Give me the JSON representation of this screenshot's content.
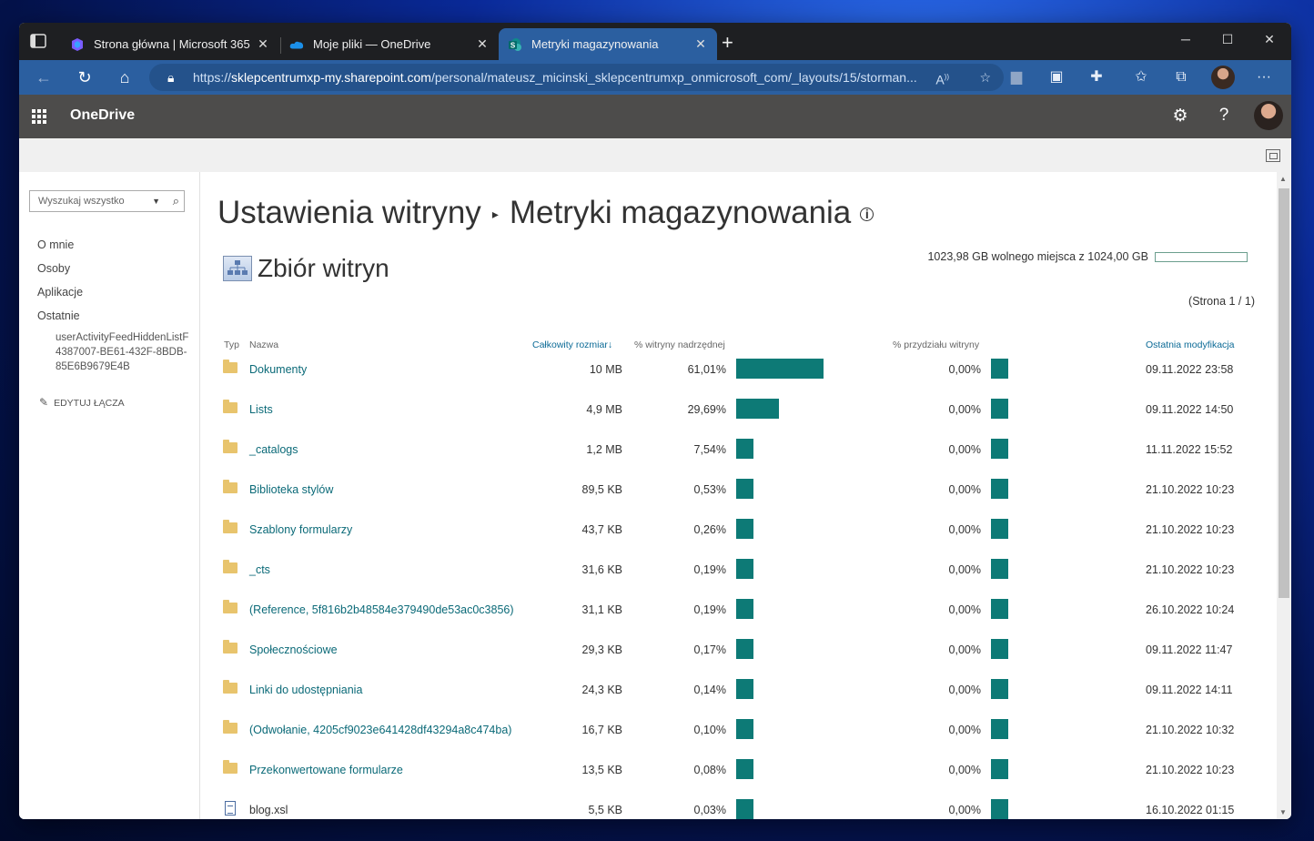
{
  "browser": {
    "tabs": [
      {
        "label": "Strona główna | Microsoft 365",
        "icon": "microsoft365-icon"
      },
      {
        "label": "Moje pliki — OneDrive",
        "icon": "onedrive-icon"
      },
      {
        "label": "Metryki magazynowania",
        "icon": "sharepoint-icon"
      }
    ],
    "new_tab": "+",
    "url_prefix": "https://",
    "url_host": "sklepcentrumxp-my.sharepoint.com",
    "url_path": "/personal/mateusz_micinski_sklepcentrumxp_onmicrosoft_com/_layouts/15/storman..."
  },
  "suite": {
    "brand": "OneDrive"
  },
  "leftnav": {
    "search_placeholder": "Wyszukaj wszystko",
    "items": [
      "O mnie",
      "Osoby",
      "Aplikacje",
      "Ostatnie"
    ],
    "recent_sub": "userActivityFeedHiddenListF4387007-BE61-432F-8BDB-85E6B9679E4B",
    "edit_links": "EDYTUJ ŁĄCZA"
  },
  "page": {
    "title_part1": "Ustawienia witryny",
    "title_part2": "Metryki magazynowania",
    "section_title": "Zbiór witryn",
    "quota_text": "1023,98 GB wolnego miejsca z 1024,00 GB",
    "quota_used_fraction": 0.0001,
    "pager": "(Strona 1 / 1)"
  },
  "table": {
    "headers": {
      "type": "Typ",
      "name": "Nazwa",
      "size": "Całkowity rozmiar",
      "parent_pct": "% witryny nadrzędnej",
      "quota_pct": "% przydziału witryny",
      "modified": "Ostatnia modyfikacja"
    },
    "rows": [
      {
        "type": "folder",
        "name": "Dokumenty",
        "size": "10 MB",
        "parent": "61,01%",
        "parent_val": 61.01,
        "quota": "0,00%",
        "modified": "09.11.2022 23:58"
      },
      {
        "type": "folder",
        "name": "Lists",
        "size": "4,9 MB",
        "parent": "29,69%",
        "parent_val": 29.69,
        "quota": "0,00%",
        "modified": "09.11.2022 14:50"
      },
      {
        "type": "folder",
        "name": "_catalogs",
        "size": "1,2 MB",
        "parent": "7,54%",
        "parent_val": 7.54,
        "quota": "0,00%",
        "modified": "11.11.2022 15:52"
      },
      {
        "type": "folder",
        "name": "Biblioteka stylów",
        "size": "89,5 KB",
        "parent": "0,53%",
        "parent_val": 0.53,
        "quota": "0,00%",
        "modified": "21.10.2022 10:23"
      },
      {
        "type": "folder",
        "name": "Szablony formularzy",
        "size": "43,7 KB",
        "parent": "0,26%",
        "parent_val": 0.26,
        "quota": "0,00%",
        "modified": "21.10.2022 10:23"
      },
      {
        "type": "folder",
        "name": "_cts",
        "size": "31,6 KB",
        "parent": "0,19%",
        "parent_val": 0.19,
        "quota": "0,00%",
        "modified": "21.10.2022 10:23"
      },
      {
        "type": "folder",
        "name": "(Reference, 5f816b2b48584e379490de53ac0c3856)",
        "size": "31,1 KB",
        "parent": "0,19%",
        "parent_val": 0.19,
        "quota": "0,00%",
        "modified": "26.10.2022 10:24"
      },
      {
        "type": "folder",
        "name": "Społecznościowe",
        "size": "29,3 KB",
        "parent": "0,17%",
        "parent_val": 0.17,
        "quota": "0,00%",
        "modified": "09.11.2022 11:47"
      },
      {
        "type": "folder",
        "name": "Linki do udostępniania",
        "size": "24,3 KB",
        "parent": "0,14%",
        "parent_val": 0.14,
        "quota": "0,00%",
        "modified": "09.11.2022 14:11"
      },
      {
        "type": "folder",
        "name": "(Odwołanie, 4205cf9023e641428df43294a8c474ba)",
        "size": "16,7 KB",
        "parent": "0,10%",
        "parent_val": 0.1,
        "quota": "0,00%",
        "modified": "21.10.2022 10:32"
      },
      {
        "type": "folder",
        "name": "Przekonwertowane formularze",
        "size": "13,5 KB",
        "parent": "0,08%",
        "parent_val": 0.08,
        "quota": "0,00%",
        "modified": "21.10.2022 10:23"
      },
      {
        "type": "file",
        "name": "blog.xsl",
        "size": "5,5 KB",
        "parent": "0,03%",
        "parent_val": 0.03,
        "quota": "0,00%",
        "modified": "16.10.2022 01:15"
      }
    ]
  },
  "colors": {
    "accent_bar": "#0d7a76",
    "link": "#0b6a78",
    "edge_blue": "#2b5fa0",
    "suite_bar": "#4d4c4b"
  }
}
